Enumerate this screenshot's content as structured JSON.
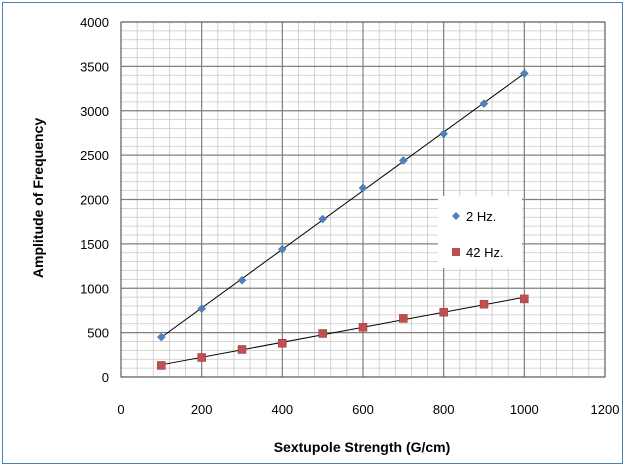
{
  "chart_data": {
    "type": "scatter",
    "title": "",
    "xlabel": "Sextupole Strength (G/cm)",
    "ylabel": "Amplitude of Frequency",
    "xlim": [
      0,
      1200
    ],
    "ylim": [
      0,
      4000
    ],
    "x_ticks": [
      "0",
      "200",
      "400",
      "600",
      "800",
      "1000",
      "1200"
    ],
    "y_ticks": [
      "0",
      "500",
      "1000",
      "1500",
      "2000",
      "2500",
      "3000",
      "3500",
      "4000"
    ],
    "grid": true,
    "legend_position": "right",
    "series": [
      {
        "name": "2 Hz.",
        "marker": "diamond",
        "color": "#4f81bd",
        "x": [
          100,
          200,
          300,
          400,
          500,
          600,
          700,
          800,
          900,
          1000
        ],
        "values": [
          450,
          770,
          1090,
          1440,
          1780,
          2130,
          2440,
          2740,
          3080,
          3420
        ],
        "trendline": true
      },
      {
        "name": "42 Hz.",
        "marker": "square",
        "color": "#c0504d",
        "x": [
          100,
          200,
          300,
          400,
          500,
          600,
          700,
          800,
          900,
          1000
        ],
        "values": [
          130,
          220,
          310,
          380,
          490,
          560,
          660,
          730,
          820,
          880
        ],
        "trendline": true
      }
    ]
  }
}
